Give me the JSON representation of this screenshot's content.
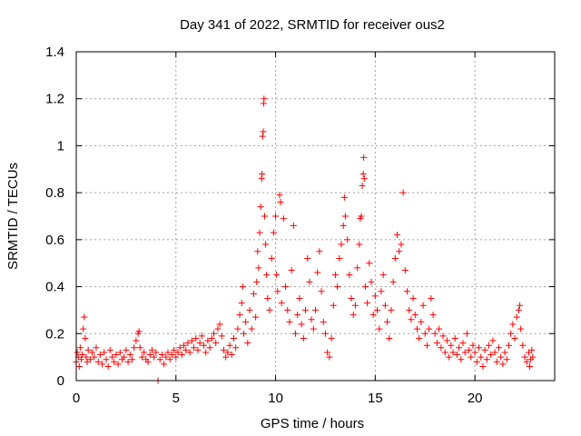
{
  "chart_data": {
    "type": "scatter",
    "title": "Day 341 of 2022, SRMTID for receiver ous2",
    "xlabel": "GPS time / hours",
    "ylabel": "SRMTID / TECUs",
    "xlim": [
      0,
      24
    ],
    "ylim": [
      0,
      1.4
    ],
    "xticks": [
      "0",
      "5",
      "10",
      "15",
      "20"
    ],
    "xtick_values": [
      0,
      5,
      10,
      15,
      20
    ],
    "yticks": [
      "0",
      "0.2",
      "0.4",
      "0.6",
      "0.8",
      "1",
      "1.2",
      "1.4"
    ],
    "ytick_values": [
      0,
      0.2,
      0.4,
      0.6,
      0.8,
      1.0,
      1.2,
      1.4
    ],
    "grid": true,
    "marker": "plus",
    "color": "#ff0000",
    "series": [
      {
        "name": "SRMTID",
        "points": [
          [
            0.0,
            0.08
          ],
          [
            0.05,
            0.12
          ],
          [
            0.1,
            0.1
          ],
          [
            0.15,
            0.06
          ],
          [
            0.2,
            0.14
          ],
          [
            0.25,
            0.09
          ],
          [
            0.3,
            0.11
          ],
          [
            0.35,
            0.22
          ],
          [
            0.4,
            0.27
          ],
          [
            0.45,
            0.18
          ],
          [
            0.5,
            0.1
          ],
          [
            0.55,
            0.08
          ],
          [
            0.6,
            0.13
          ],
          [
            0.7,
            0.09
          ],
          [
            0.8,
            0.12
          ],
          [
            0.9,
            0.1
          ],
          [
            1.0,
            0.14
          ],
          [
            1.1,
            0.08
          ],
          [
            1.2,
            0.11
          ],
          [
            1.3,
            0.07
          ],
          [
            1.4,
            0.12
          ],
          [
            1.5,
            0.09
          ],
          [
            1.6,
            0.06
          ],
          [
            1.7,
            0.13
          ],
          [
            1.8,
            0.1
          ],
          [
            1.9,
            0.08
          ],
          [
            2.0,
            0.11
          ],
          [
            2.1,
            0.07
          ],
          [
            2.2,
            0.12
          ],
          [
            2.3,
            0.09
          ],
          [
            2.4,
            0.1
          ],
          [
            2.5,
            0.13
          ],
          [
            2.6,
            0.08
          ],
          [
            2.7,
            0.11
          ],
          [
            2.8,
            0.09
          ],
          [
            2.9,
            0.14
          ],
          [
            3.0,
            0.17
          ],
          [
            3.1,
            0.2
          ],
          [
            3.15,
            0.21
          ],
          [
            3.2,
            0.14
          ],
          [
            3.3,
            0.1
          ],
          [
            3.4,
            0.12
          ],
          [
            3.5,
            0.09
          ],
          [
            3.6,
            0.08
          ],
          [
            3.7,
            0.11
          ],
          [
            3.8,
            0.13
          ],
          [
            3.9,
            0.1
          ],
          [
            4.0,
            0.12
          ],
          [
            4.1,
            0.0
          ],
          [
            4.2,
            0.09
          ],
          [
            4.3,
            0.11
          ],
          [
            4.4,
            0.07
          ],
          [
            4.5,
            0.1
          ],
          [
            4.6,
            0.12
          ],
          [
            4.7,
            0.09
          ],
          [
            4.8,
            0.11
          ],
          [
            4.9,
            0.13
          ],
          [
            5.0,
            0.1
          ],
          [
            5.1,
            0.12
          ],
          [
            5.2,
            0.14
          ],
          [
            5.3,
            0.11
          ],
          [
            5.4,
            0.15
          ],
          [
            5.5,
            0.13
          ],
          [
            5.6,
            0.16
          ],
          [
            5.7,
            0.12
          ],
          [
            5.8,
            0.17
          ],
          [
            5.9,
            0.14
          ],
          [
            6.0,
            0.18
          ],
          [
            6.1,
            0.13
          ],
          [
            6.2,
            0.16
          ],
          [
            6.3,
            0.19
          ],
          [
            6.4,
            0.15
          ],
          [
            6.5,
            0.12
          ],
          [
            6.6,
            0.17
          ],
          [
            6.7,
            0.14
          ],
          [
            6.8,
            0.18
          ],
          [
            6.9,
            0.2
          ],
          [
            7.0,
            0.16
          ],
          [
            7.1,
            0.22
          ],
          [
            7.2,
            0.24
          ],
          [
            7.3,
            0.19
          ],
          [
            7.4,
            0.13
          ],
          [
            7.5,
            0.1
          ],
          [
            7.6,
            0.12
          ],
          [
            7.7,
            0.15
          ],
          [
            7.8,
            0.11
          ],
          [
            7.9,
            0.18
          ],
          [
            8.0,
            0.14
          ],
          [
            8.1,
            0.22
          ],
          [
            8.2,
            0.28
          ],
          [
            8.3,
            0.33
          ],
          [
            8.35,
            0.4
          ],
          [
            8.4,
            0.2
          ],
          [
            8.5,
            0.25
          ],
          [
            8.6,
            0.16
          ],
          [
            8.7,
            0.3
          ],
          [
            8.8,
            0.22
          ],
          [
            8.9,
            0.37
          ],
          [
            9.0,
            0.27
          ],
          [
            9.05,
            0.42
          ],
          [
            9.1,
            0.55
          ],
          [
            9.15,
            0.48
          ],
          [
            9.2,
            0.63
          ],
          [
            9.25,
            0.74
          ],
          [
            9.3,
            0.86
          ],
          [
            9.32,
            0.88
          ],
          [
            9.35,
            1.04
          ],
          [
            9.38,
            1.06
          ],
          [
            9.4,
            1.18
          ],
          [
            9.42,
            1.2
          ],
          [
            9.45,
            0.7
          ],
          [
            9.5,
            0.58
          ],
          [
            9.55,
            0.45
          ],
          [
            9.6,
            0.35
          ],
          [
            9.7,
            0.3
          ],
          [
            9.8,
            0.52
          ],
          [
            9.9,
            0.63
          ],
          [
            10.0,
            0.7
          ],
          [
            10.05,
            0.45
          ],
          [
            10.1,
            0.38
          ],
          [
            10.2,
            0.79
          ],
          [
            10.25,
            0.76
          ],
          [
            10.3,
            0.33
          ],
          [
            10.4,
            0.69
          ],
          [
            10.5,
            0.4
          ],
          [
            10.6,
            0.3
          ],
          [
            10.7,
            0.25
          ],
          [
            10.8,
            0.47
          ],
          [
            10.9,
            0.66
          ],
          [
            11.0,
            0.2
          ],
          [
            11.1,
            0.28
          ],
          [
            11.2,
            0.35
          ],
          [
            11.3,
            0.24
          ],
          [
            11.4,
            0.18
          ],
          [
            11.5,
            0.3
          ],
          [
            11.6,
            0.52
          ],
          [
            11.7,
            0.42
          ],
          [
            11.8,
            0.26
          ],
          [
            11.9,
            0.22
          ],
          [
            12.0,
            0.3
          ],
          [
            12.1,
            0.46
          ],
          [
            12.2,
            0.55
          ],
          [
            12.3,
            0.38
          ],
          [
            12.4,
            0.25
          ],
          [
            12.5,
            0.2
          ],
          [
            12.6,
            0.12
          ],
          [
            12.7,
            0.1
          ],
          [
            12.8,
            0.18
          ],
          [
            12.9,
            0.32
          ],
          [
            13.0,
            0.45
          ],
          [
            13.1,
            0.4
          ],
          [
            13.2,
            0.52
          ],
          [
            13.3,
            0.58
          ],
          [
            13.4,
            0.66
          ],
          [
            13.45,
            0.78
          ],
          [
            13.5,
            0.7
          ],
          [
            13.6,
            0.6
          ],
          [
            13.7,
            0.45
          ],
          [
            13.8,
            0.35
          ],
          [
            13.9,
            0.28
          ],
          [
            14.0,
            0.32
          ],
          [
            14.1,
            0.48
          ],
          [
            14.2,
            0.58
          ],
          [
            14.25,
            0.69
          ],
          [
            14.3,
            0.7
          ],
          [
            14.35,
            0.83
          ],
          [
            14.4,
            0.88
          ],
          [
            14.42,
            0.95
          ],
          [
            14.45,
            0.86
          ],
          [
            14.5,
            0.4
          ],
          [
            14.6,
            0.33
          ],
          [
            14.7,
            0.5
          ],
          [
            14.8,
            0.42
          ],
          [
            14.9,
            0.28
          ],
          [
            15.0,
            0.36
          ],
          [
            15.1,
            0.3
          ],
          [
            15.2,
            0.22
          ],
          [
            15.3,
            0.38
          ],
          [
            15.4,
            0.45
          ],
          [
            15.5,
            0.32
          ],
          [
            15.6,
            0.25
          ],
          [
            15.7,
            0.18
          ],
          [
            15.8,
            0.3
          ],
          [
            15.9,
            0.42
          ],
          [
            16.0,
            0.52
          ],
          [
            16.1,
            0.62
          ],
          [
            16.2,
            0.55
          ],
          [
            16.3,
            0.58
          ],
          [
            16.4,
            0.8
          ],
          [
            16.5,
            0.47
          ],
          [
            16.6,
            0.38
          ],
          [
            16.7,
            0.3
          ],
          [
            16.8,
            0.26
          ],
          [
            16.9,
            0.35
          ],
          [
            17.0,
            0.28
          ],
          [
            17.1,
            0.22
          ],
          [
            17.2,
            0.18
          ],
          [
            17.3,
            0.25
          ],
          [
            17.4,
            0.32
          ],
          [
            17.5,
            0.2
          ],
          [
            17.6,
            0.15
          ],
          [
            17.7,
            0.22
          ],
          [
            17.8,
            0.35
          ],
          [
            17.9,
            0.28
          ],
          [
            18.0,
            0.2
          ],
          [
            18.1,
            0.16
          ],
          [
            18.2,
            0.22
          ],
          [
            18.3,
            0.14
          ],
          [
            18.4,
            0.19
          ],
          [
            18.5,
            0.12
          ],
          [
            18.6,
            0.17
          ],
          [
            18.7,
            0.1
          ],
          [
            18.8,
            0.15
          ],
          [
            18.9,
            0.12
          ],
          [
            19.0,
            0.18
          ],
          [
            19.1,
            0.11
          ],
          [
            19.2,
            0.14
          ],
          [
            19.3,
            0.09
          ],
          [
            19.4,
            0.16
          ],
          [
            19.5,
            0.12
          ],
          [
            19.6,
            0.2
          ],
          [
            19.7,
            0.13
          ],
          [
            19.8,
            0.1
          ],
          [
            19.9,
            0.15
          ],
          [
            20.0,
            0.12
          ],
          [
            20.1,
            0.08
          ],
          [
            20.2,
            0.14
          ],
          [
            20.3,
            0.1
          ],
          [
            20.4,
            0.06
          ],
          [
            20.5,
            0.13
          ],
          [
            20.6,
            0.09
          ],
          [
            20.7,
            0.15
          ],
          [
            20.8,
            0.11
          ],
          [
            20.9,
            0.17
          ],
          [
            21.0,
            0.12
          ],
          [
            21.1,
            0.08
          ],
          [
            21.2,
            0.14
          ],
          [
            21.3,
            0.1
          ],
          [
            21.4,
            0.07
          ],
          [
            21.5,
            0.12
          ],
          [
            21.6,
            0.09
          ],
          [
            21.7,
            0.15
          ],
          [
            21.8,
            0.2
          ],
          [
            21.9,
            0.24
          ],
          [
            22.0,
            0.18
          ],
          [
            22.1,
            0.27
          ],
          [
            22.2,
            0.3
          ],
          [
            22.25,
            0.32
          ],
          [
            22.3,
            0.22
          ],
          [
            22.4,
            0.15
          ],
          [
            22.5,
            0.1
          ],
          [
            22.6,
            0.08
          ],
          [
            22.7,
            0.12
          ],
          [
            22.75,
            0.06
          ],
          [
            22.8,
            0.09
          ],
          [
            22.85,
            0.13
          ],
          [
            22.9,
            0.1
          ]
        ]
      }
    ]
  }
}
